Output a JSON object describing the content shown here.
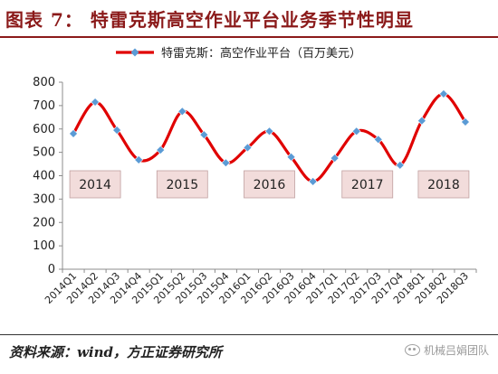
{
  "header": {
    "title": "图表 7：  特雷克斯高空作业平台业务季节性明显"
  },
  "footer": {
    "source": "资料来源：wind，方正证券研究所",
    "watermark": "机械吕娟团队"
  },
  "colors": {
    "header": "#8b1a1a",
    "line": "#e00000",
    "marker": "#5b9bd5",
    "year_box_fill": "#f2dcdb",
    "year_box_border": "#c0a0a0"
  },
  "chart_data": {
    "type": "line",
    "title": "",
    "xlabel": "",
    "ylabel": "",
    "ylim": [
      0,
      800
    ],
    "yticks": [
      0,
      100,
      200,
      300,
      400,
      500,
      600,
      700,
      800
    ],
    "grid": false,
    "legend_position": "top-center",
    "categories": [
      "2014Q1",
      "2014Q2",
      "2014Q3",
      "2014Q4",
      "2015Q1",
      "2015Q2",
      "2015Q3",
      "2015Q4",
      "2016Q1",
      "2016Q2",
      "2016Q3",
      "2016Q4",
      "2017Q1",
      "2017Q2",
      "2017Q3",
      "2017Q4",
      "2018Q1",
      "2018Q2",
      "2018Q3"
    ],
    "series": [
      {
        "name": "特雷克斯：高空作业平台（百万美元）",
        "values": [
          580,
          715,
          595,
          468,
          510,
          675,
          575,
          455,
          520,
          590,
          480,
          375,
          475,
          590,
          555,
          445,
          635,
          750,
          630
        ]
      }
    ],
    "annotations": [
      {
        "text": "2014",
        "x_center_index": 1
      },
      {
        "text": "2015",
        "x_center_index": 5
      },
      {
        "text": "2016",
        "x_center_index": 9
      },
      {
        "text": "2017",
        "x_center_index": 13.5
      },
      {
        "text": "2018",
        "x_center_index": 17
      }
    ]
  }
}
